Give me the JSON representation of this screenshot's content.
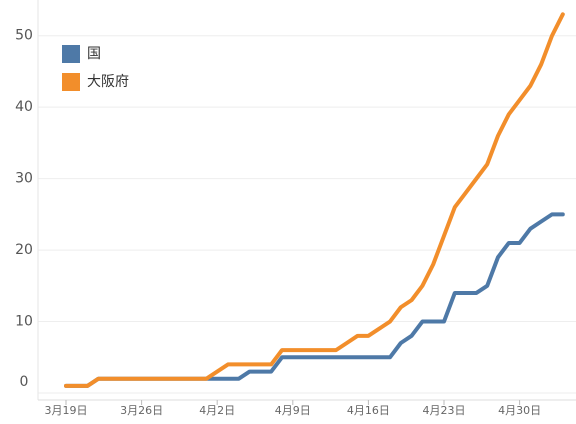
{
  "chart_data": {
    "type": "line",
    "categories": [
      "3月19日",
      null,
      null,
      null,
      null,
      null,
      null,
      "3月26日",
      null,
      null,
      null,
      null,
      null,
      null,
      "4月2日",
      null,
      null,
      null,
      null,
      null,
      null,
      "4月9日",
      null,
      null,
      null,
      null,
      null,
      null,
      "4月16日",
      null,
      null,
      null,
      null,
      null,
      null,
      "4月23日",
      null,
      null,
      null,
      null,
      null,
      null,
      "4月30日",
      null,
      null,
      null,
      null
    ],
    "series": [
      {
        "name": "国",
        "color": "#4e79a7",
        "values": [
          1,
          1,
          1,
          2,
          2,
          2,
          2,
          2,
          2,
          2,
          2,
          2,
          2,
          2,
          2,
          2,
          2,
          3,
          3,
          3,
          5,
          5,
          5,
          5,
          5,
          5,
          5,
          5,
          5,
          5,
          5,
          7,
          8,
          10,
          10,
          10,
          14,
          14,
          14,
          15,
          19,
          21,
          21,
          23,
          24,
          25,
          25
        ]
      },
      {
        "name": "大阪府",
        "color": "#f28e2b",
        "values": [
          1,
          1,
          1,
          2,
          2,
          2,
          2,
          2,
          2,
          2,
          2,
          2,
          2,
          2,
          3,
          4,
          4,
          4,
          4,
          4,
          6,
          6,
          6,
          6,
          6,
          6,
          7,
          8,
          8,
          9,
          10,
          12,
          13,
          15,
          18,
          22,
          26,
          28,
          30,
          32,
          36,
          39,
          41,
          43,
          46,
          50,
          53
        ]
      }
    ],
    "ylim": [
      0,
      55
    ],
    "yticks": [
      0,
      10,
      20,
      30,
      40,
      50
    ],
    "grid": true,
    "legend": "top-left"
  }
}
